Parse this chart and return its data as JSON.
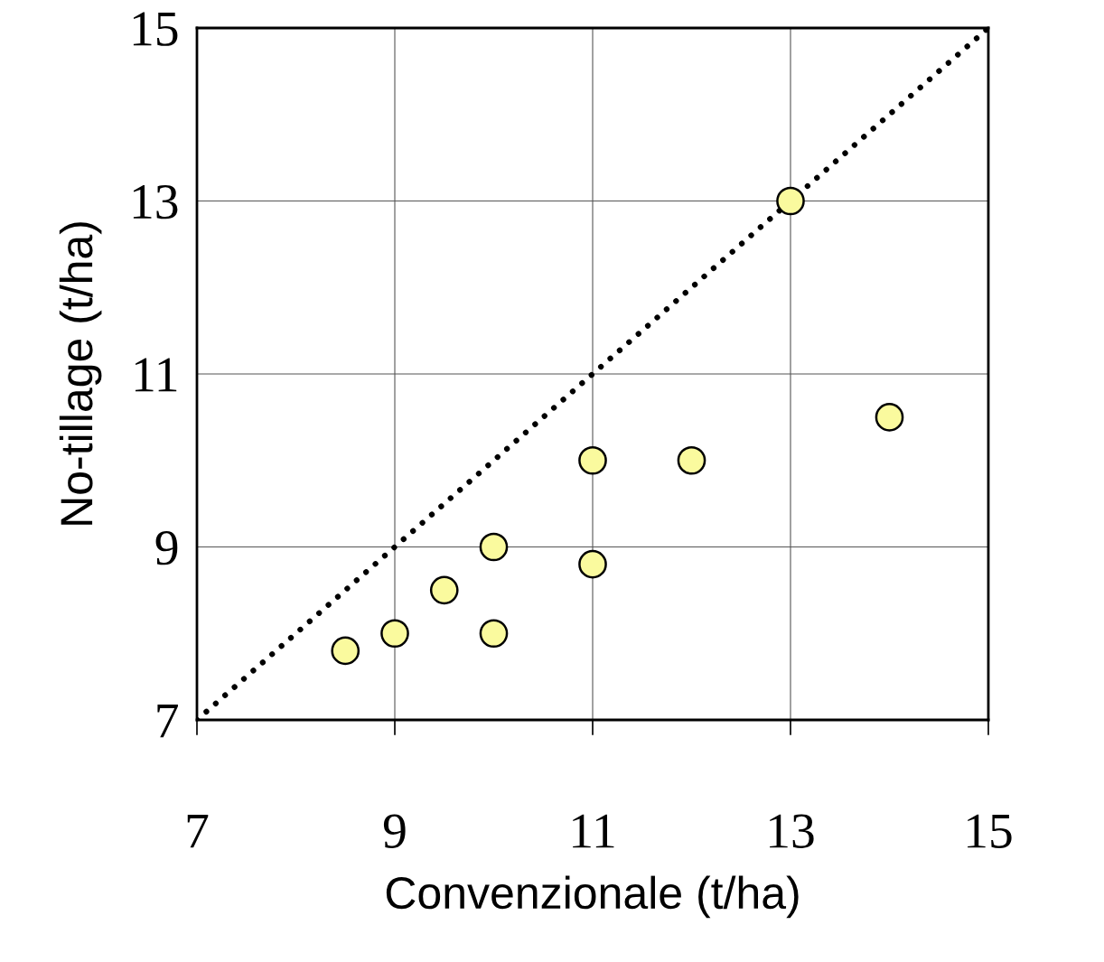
{
  "chart_data": {
    "type": "scatter",
    "xlabel": "Convenzionale (t/ha)",
    "ylabel": "No-tillage (t/ha)",
    "x": [
      8.5,
      9,
      9.5,
      10,
      10,
      11,
      11,
      12,
      13,
      14
    ],
    "series": [
      {
        "color": "#fafa9e",
        "marker": "circle",
        "values": [
          7.8,
          8.0,
          8.5,
          9.0,
          8.0,
          10.0,
          8.8,
          10.0,
          13.0,
          10.5
        ]
      },
      {
        "type": "line",
        "color": "#000000",
        "line_style": "dotted",
        "x": [
          7,
          15
        ],
        "values": [
          7,
          15
        ]
      }
    ],
    "xlim": [
      7,
      15
    ],
    "ylim": [
      7,
      15
    ],
    "xticks": [
      7,
      9,
      11,
      13,
      15
    ],
    "yticks": [
      7,
      9,
      11,
      13,
      15
    ],
    "grid": true,
    "legend": false
  }
}
